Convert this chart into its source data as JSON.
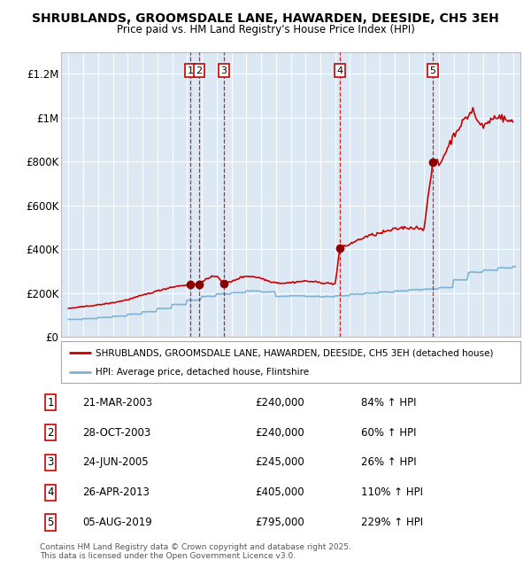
{
  "title": "SHRUBLANDS, GROOMSDALE LANE, HAWARDEN, DEESIDE, CH5 3EH",
  "subtitle": "Price paid vs. HM Land Registry's House Price Index (HPI)",
  "bg_color": "#dce9f5",
  "grid_color": "#ffffff",
  "sale_line_color": "#cc0000",
  "hpi_line_color": "#7fb3d3",
  "sale_marker_color": "#8b0000",
  "transactions": [
    {
      "num": 1,
      "date": "21-MAR-2003",
      "year": 2003.22,
      "price": 240000,
      "pct": "84%",
      "dir": "↑"
    },
    {
      "num": 2,
      "date": "28-OCT-2003",
      "year": 2003.82,
      "price": 240000,
      "pct": "60%",
      "dir": "↑"
    },
    {
      "num": 3,
      "date": "24-JUN-2005",
      "year": 2005.48,
      "price": 245000,
      "pct": "26%",
      "dir": "↑"
    },
    {
      "num": 4,
      "date": "26-APR-2013",
      "year": 2013.32,
      "price": 405000,
      "pct": "110%",
      "dir": "↑"
    },
    {
      "num": 5,
      "date": "05-AUG-2019",
      "year": 2019.59,
      "price": 795000,
      "pct": "229%",
      "dir": "↑"
    }
  ],
  "ylim": [
    0,
    1300000
  ],
  "xlim": [
    1994.5,
    2025.5
  ],
  "yticks": [
    0,
    200000,
    400000,
    600000,
    800000,
    1000000,
    1200000
  ],
  "ytick_labels": [
    "£0",
    "£200K",
    "£400K",
    "£600K",
    "£800K",
    "£1M",
    "£1.2M"
  ],
  "xticks": [
    1995,
    1996,
    1997,
    1998,
    1999,
    2000,
    2001,
    2002,
    2003,
    2004,
    2005,
    2006,
    2007,
    2008,
    2009,
    2010,
    2011,
    2012,
    2013,
    2014,
    2015,
    2016,
    2017,
    2018,
    2019,
    2020,
    2021,
    2022,
    2023,
    2024,
    2025
  ],
  "legend_sale_label": "SHRUBLANDS, GROOMSDALE LANE, HAWARDEN, DEESIDE, CH5 3EH (detached house)",
  "legend_hpi_label": "HPI: Average price, detached house, Flintshire",
  "footer": "Contains HM Land Registry data © Crown copyright and database right 2025.\nThis data is licensed under the Open Government Licence v3.0."
}
